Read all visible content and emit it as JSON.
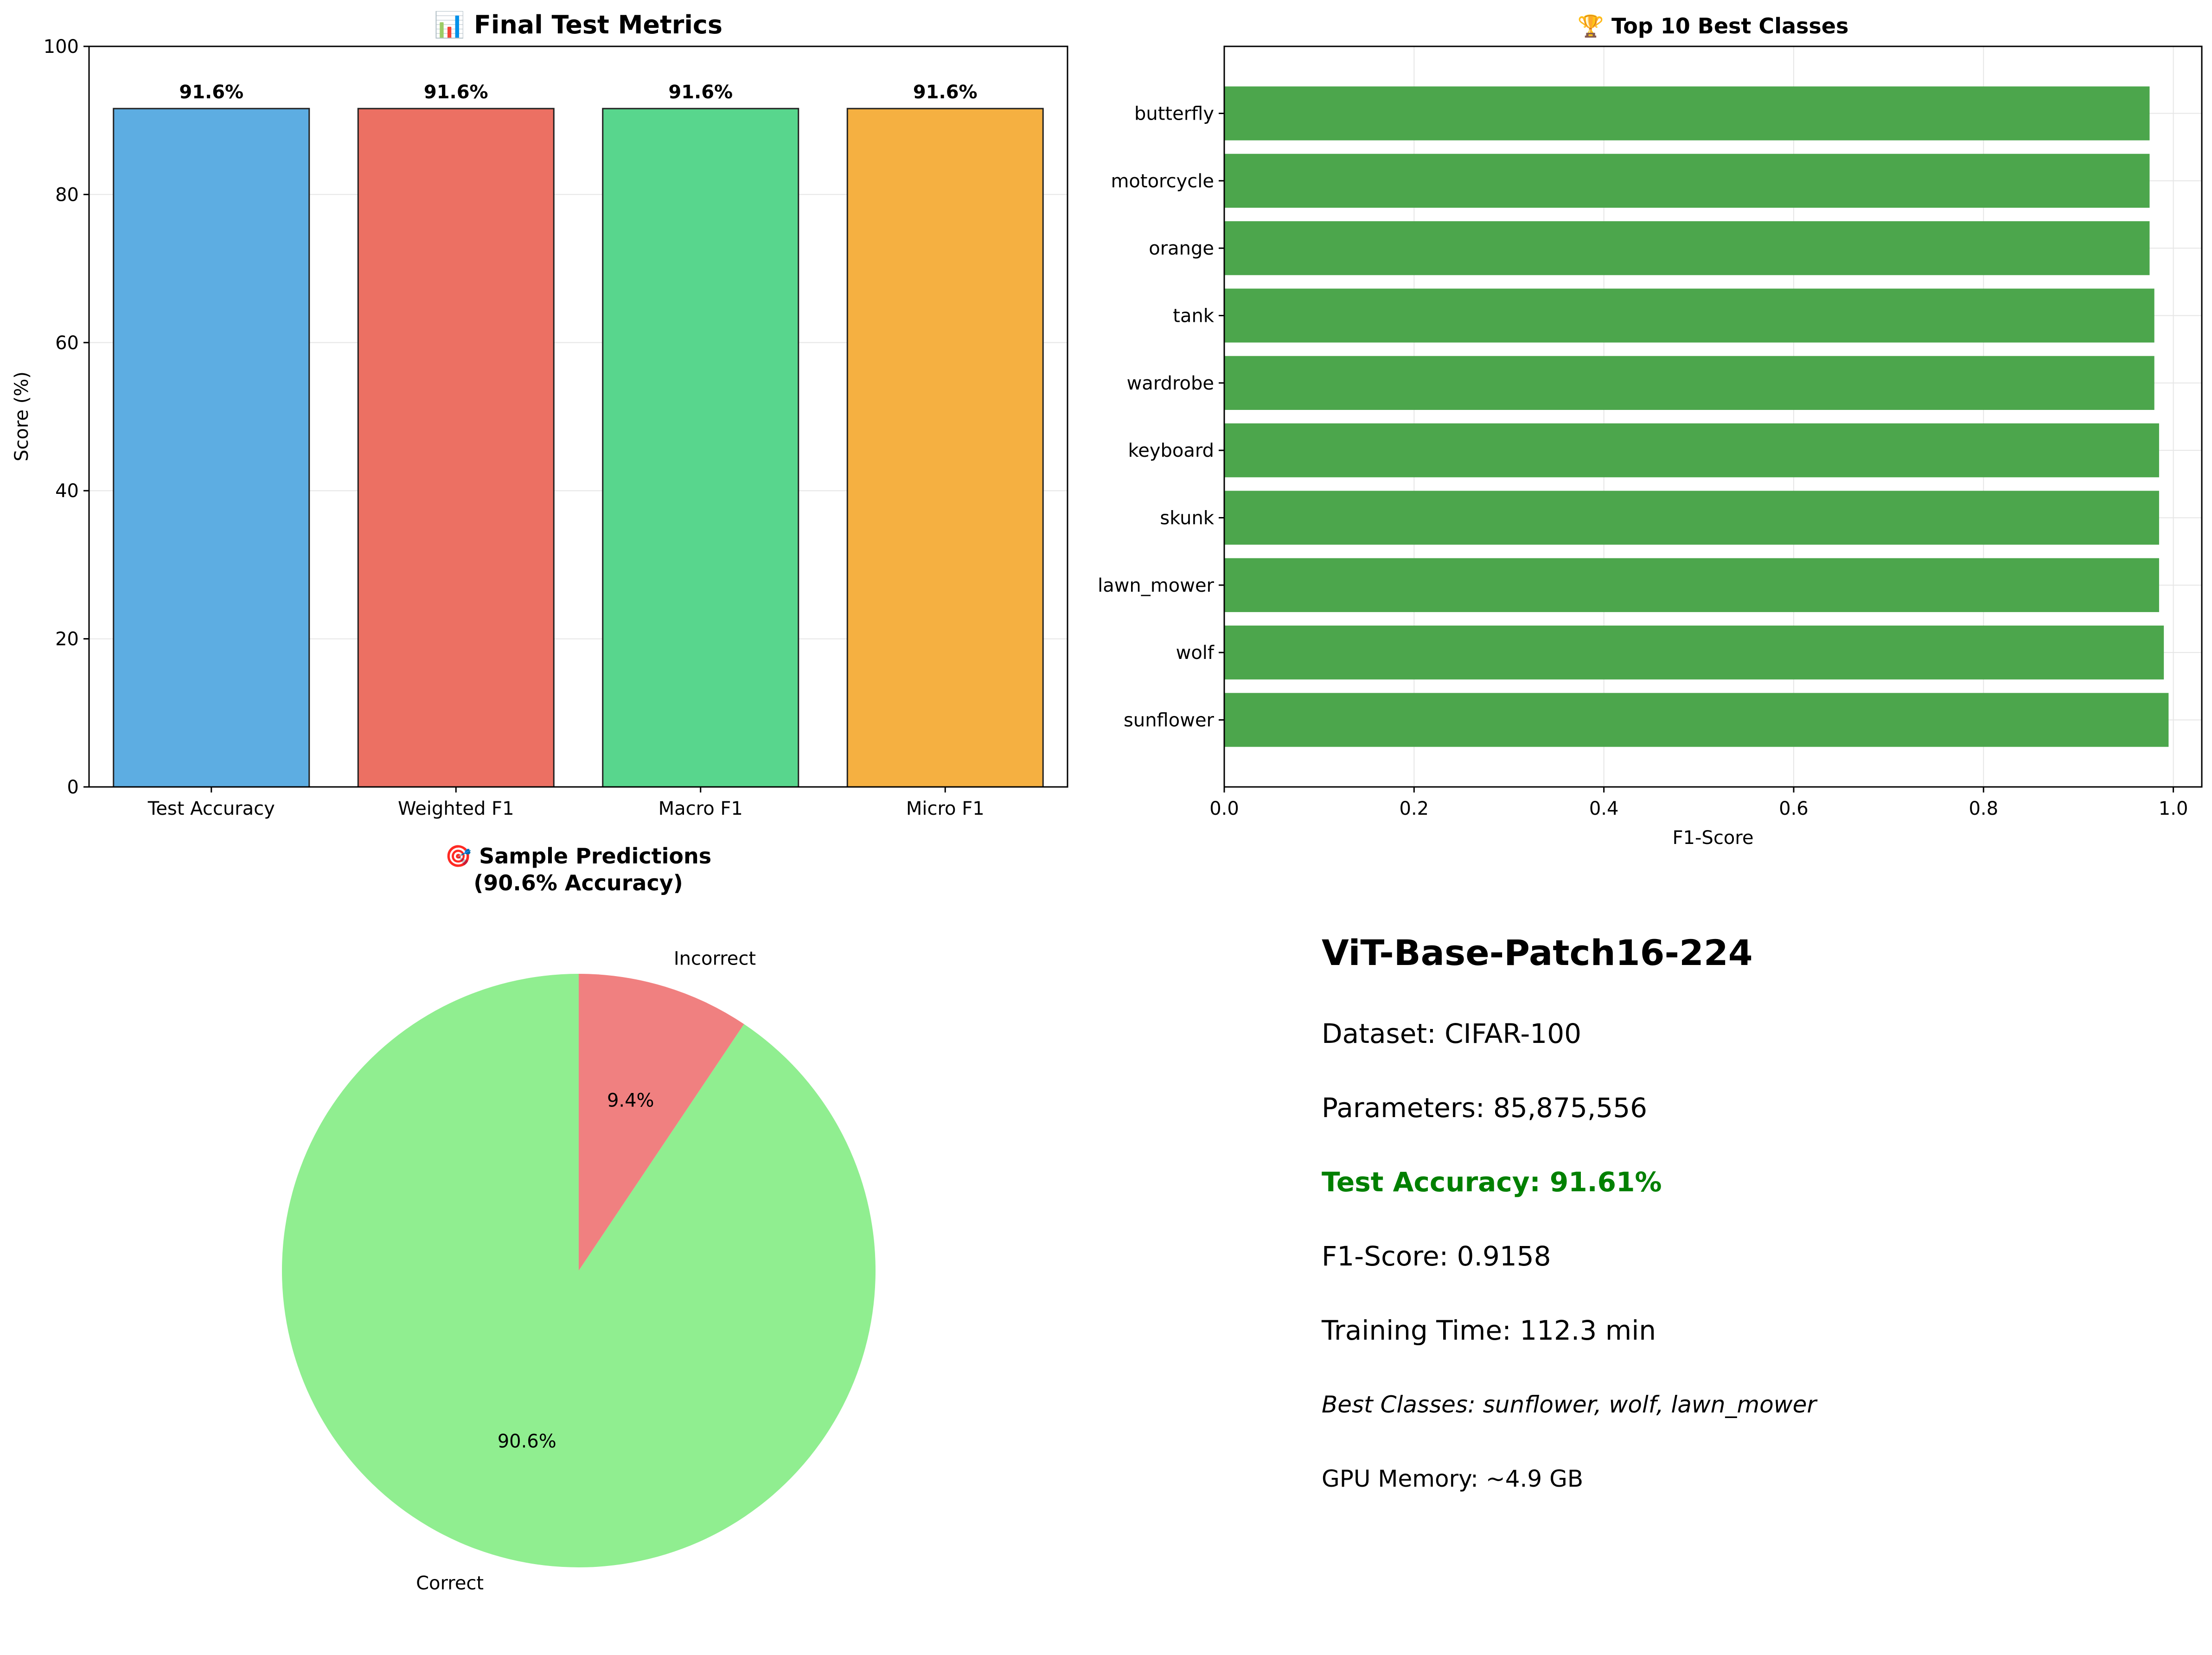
{
  "chart_data": [
    {
      "type": "bar",
      "title": "📊 Final Test Metrics",
      "ylabel": "Score (%)",
      "ylim": [
        0,
        100
      ],
      "yticks": [
        0,
        20,
        40,
        60,
        80,
        100
      ],
      "grid": true,
      "categories": [
        "Test Accuracy",
        "Weighted F1",
        "Macro F1",
        "Micro F1"
      ],
      "values": [
        91.6,
        91.6,
        91.6,
        91.6
      ],
      "value_labels": [
        "91.6%",
        "91.6%",
        "91.6%",
        "91.6%"
      ],
      "colors": [
        "#5dade2",
        "#ec7063",
        "#58d68d",
        "#f5b041"
      ]
    },
    {
      "type": "bar",
      "orientation": "horizontal",
      "title": "🏆 Top 10 Best Classes",
      "xlabel": "F1-Score",
      "xlim": [
        0,
        1.03
      ],
      "xticks": [
        "0.0",
        "0.2",
        "0.4",
        "0.6",
        "0.8",
        "1.0"
      ],
      "grid": true,
      "categories": [
        "sunflower",
        "wolf",
        "lawn_mower",
        "skunk",
        "keyboard",
        "wardrobe",
        "tank",
        "orange",
        "motorcycle",
        "butterfly"
      ],
      "values": [
        0.995,
        0.99,
        0.985,
        0.985,
        0.985,
        0.98,
        0.98,
        0.975,
        0.975,
        0.975
      ],
      "color": "#4ca64c"
    },
    {
      "type": "pie",
      "title": "🎯 Sample Predictions",
      "subtitle": "(90.6% Accuracy)",
      "slices": [
        {
          "label": "Correct",
          "value": 90.6,
          "pct_label": "90.6%",
          "color": "#90ee90"
        },
        {
          "label": "Incorrect",
          "value": 9.4,
          "pct_label": "9.4%",
          "color": "#f08080"
        }
      ]
    }
  ],
  "summary": {
    "model": "ViT-Base-Patch16-224",
    "dataset": "Dataset: CIFAR-100",
    "parameters": "Parameters: 85,875,556",
    "test_accuracy": "Test Accuracy: 91.61%",
    "f1": "F1-Score: 0.9158",
    "training_time": "Training Time: 112.3 min",
    "best_classes": "Best Classes: sunflower, wolf, lawn_mower",
    "gpu_memory": "GPU Memory: ~4.9 GB",
    "accuracy_color": "#008000"
  }
}
